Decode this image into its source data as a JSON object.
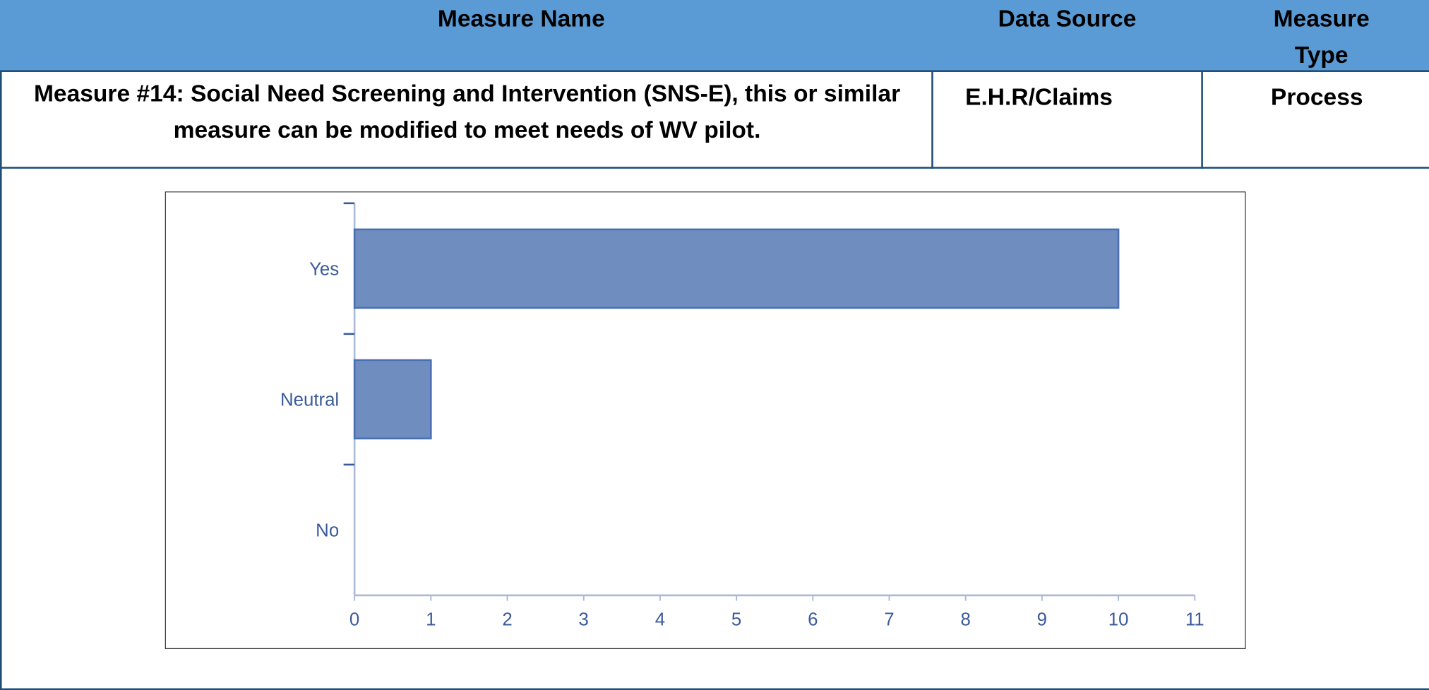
{
  "table": {
    "header": [
      "Measure Name",
      "Data Source",
      "Measure Type"
    ],
    "rows": [
      [
        "Measure #14: Social Need Screening and Intervention (SNS-E), this or similar measure can be modified to meet needs of WV pilot.",
        "E.H.R/Claims",
        "Process"
      ]
    ]
  },
  "chart_data": {
    "type": "bar",
    "orientation": "horizontal",
    "categories": [
      "Yes",
      "Neutral",
      "No"
    ],
    "values": [
      10,
      1,
      0
    ],
    "color": "#6f8dbf",
    "xlim": [
      0,
      11
    ],
    "xticks": [
      0,
      1,
      2,
      3,
      4,
      5,
      6,
      7,
      8,
      9,
      10,
      11
    ]
  }
}
